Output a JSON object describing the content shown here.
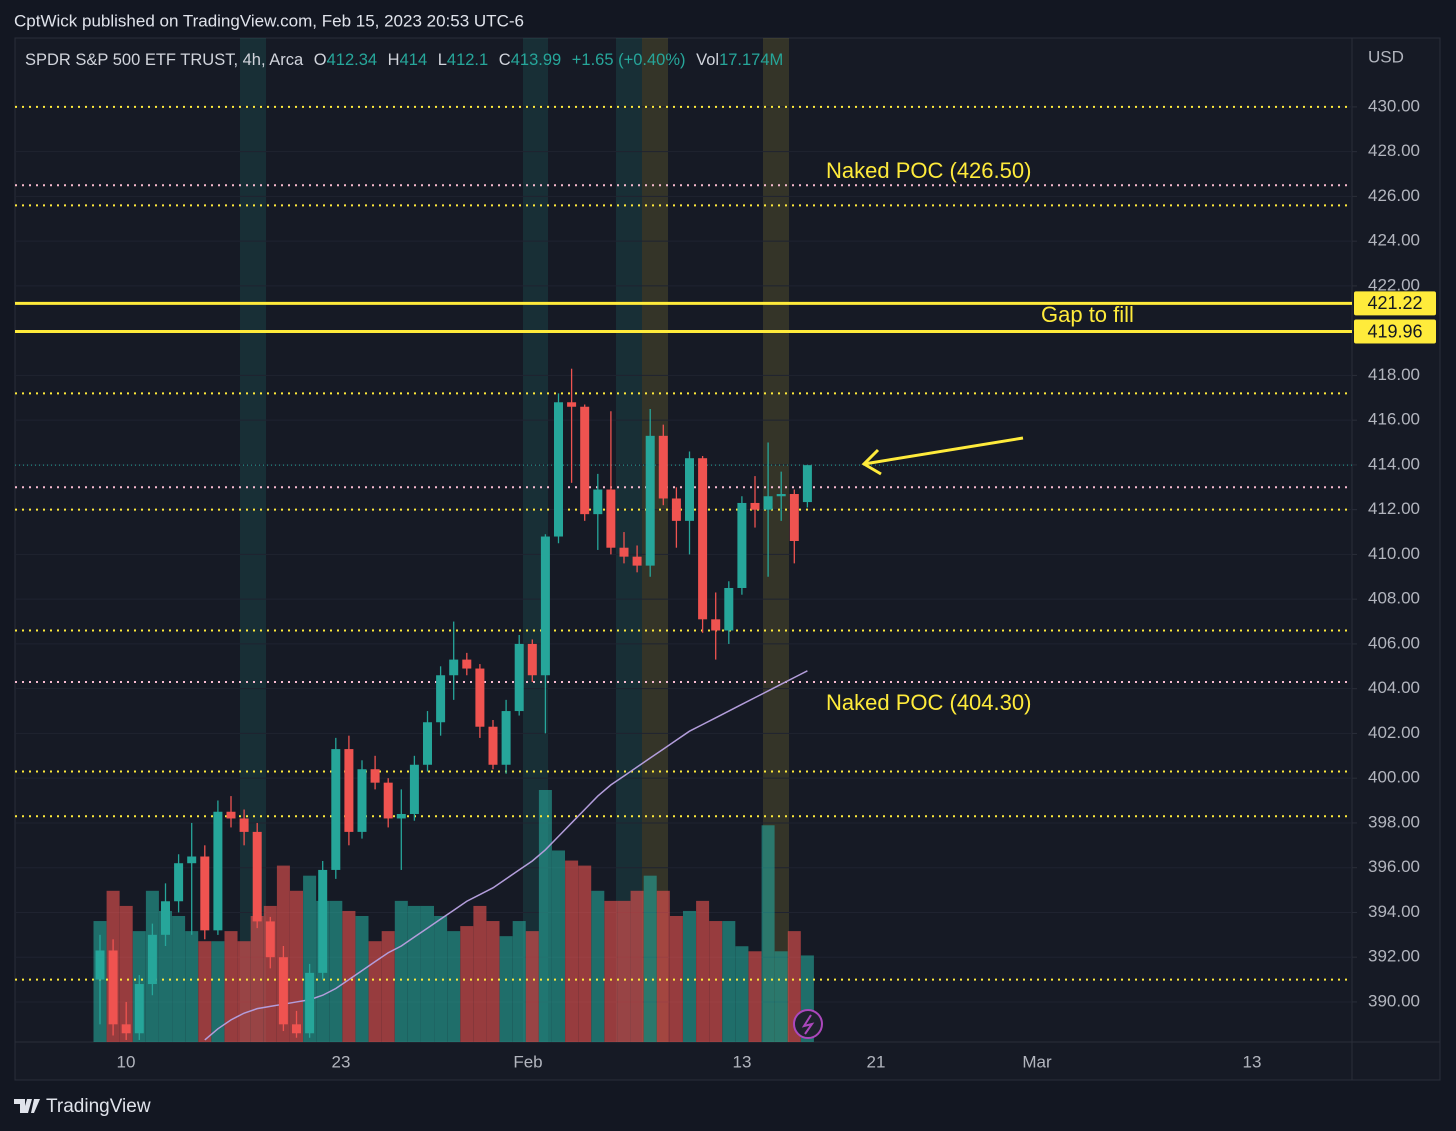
{
  "header": {
    "published": "CptWick published on TradingView.com, Feb 15, 2023 20:53 UTC-6"
  },
  "footer": {
    "brand": "TradingView"
  },
  "chart_data": {
    "type": "candlestick",
    "legend": {
      "symbol": "SPDR S&P 500 ETF TRUST, 4h, Arca",
      "open_label": "O",
      "open": 412.34,
      "high_label": "H",
      "high": 414.0,
      "low_label": "L",
      "low": 412.1,
      "close_label": "C",
      "close": 413.99,
      "change": "+1.65 (+0.40%)",
      "vol_label": "Vol",
      "vol": "17.174M"
    },
    "currency": "USD",
    "up_color": "#26a69a",
    "down_color": "#ef5350",
    "ylim": [
      388.21,
      432.99
    ],
    "yticks": [
      {
        "value": 390,
        "label": "390.00"
      },
      {
        "value": 392,
        "label": "392.00"
      },
      {
        "value": 394,
        "label": "394.00"
      },
      {
        "value": 396,
        "label": "396.00"
      },
      {
        "value": 398,
        "label": "398.00"
      },
      {
        "value": 400,
        "label": "400.00"
      },
      {
        "value": 402,
        "label": "402.00"
      },
      {
        "value": 404,
        "label": "404.00"
      },
      {
        "value": 406,
        "label": "406.00"
      },
      {
        "value": 408,
        "label": "408.00"
      },
      {
        "value": 410,
        "label": "410.00"
      },
      {
        "value": 412,
        "label": "412.00"
      },
      {
        "value": 414,
        "label": "414.00"
      },
      {
        "value": 416,
        "label": "416.00"
      },
      {
        "value": 418,
        "label": "418.00"
      },
      {
        "value": 420,
        "label": "420.00"
      },
      {
        "value": 422,
        "label": "422.00"
      },
      {
        "value": 424,
        "label": "424.00"
      },
      {
        "value": 426,
        "label": "426.00"
      },
      {
        "value": 428,
        "label": "428.00"
      },
      {
        "value": 430,
        "label": "430.00"
      }
    ],
    "xtick_labels": [
      "10",
      "23",
      "Feb",
      "13",
      "21",
      "Mar",
      "13"
    ],
    "grid": true,
    "open": [
      391,
      392.3,
      389,
      388.6,
      390.8,
      393,
      394.5,
      396.2,
      396.5,
      393.2,
      398.5,
      398.2,
      397.6,
      393.6,
      392,
      389,
      388.6,
      391.3,
      395.9,
      401.3,
      397.6,
      400.4,
      399.8,
      398.2,
      398.4,
      400.6,
      402.5,
      404.6,
      405.3,
      404.9,
      402.3,
      400.6,
      403,
      406,
      404.6,
      410.8,
      416.8,
      416.6,
      411.8,
      412.9,
      410.3,
      409.9,
      409.5,
      415.3,
      412.5,
      411.5,
      414.3,
      407.1,
      406.6,
      408.5,
      412.3,
      412,
      412.6,
      412.7,
      412.34
    ],
    "high": [
      393,
      392.8,
      390,
      391.2,
      393.5,
      395.3,
      396.6,
      398,
      397,
      399,
      399.2,
      398.6,
      398,
      393.8,
      392.5,
      389.6,
      391.7,
      396.3,
      401.8,
      401.9,
      400.8,
      401,
      400,
      399.5,
      401,
      403,
      405,
      407,
      405.6,
      405.1,
      402.6,
      403.5,
      406.4,
      406.2,
      410.9,
      417.2,
      418.3,
      416.7,
      413.6,
      416.4,
      411,
      410.4,
      416.5,
      415.8,
      413,
      414.6,
      414.4,
      408.3,
      408.8,
      412.6,
      413.5,
      415,
      413.7,
      412.9,
      414.0
    ],
    "low": [
      389,
      388.5,
      388.3,
      388.3,
      390.3,
      392.5,
      394,
      393,
      392.8,
      393,
      397.8,
      397,
      393.3,
      391.5,
      388.7,
      388.4,
      388.4,
      391,
      395.5,
      397,
      397.3,
      399.5,
      397.8,
      395.9,
      398.1,
      400.3,
      401.9,
      403.5,
      404.6,
      401.8,
      400.4,
      400.2,
      402.8,
      404.3,
      402,
      410.5,
      413.2,
      411.5,
      410.2,
      410,
      409.6,
      409.2,
      409,
      412.2,
      410.3,
      410,
      406.5,
      405.3,
      406,
      408.2,
      411.2,
      409,
      411.5,
      409.6,
      412.1
    ],
    "close": [
      392.3,
      389,
      388.6,
      390.8,
      393,
      394.5,
      396.2,
      396.5,
      393.2,
      398.5,
      398.2,
      397.6,
      393.6,
      392,
      389,
      388.6,
      391.3,
      395.9,
      401.3,
      397.6,
      400.4,
      399.8,
      398.2,
      398.4,
      400.6,
      402.5,
      404.6,
      405.3,
      404.9,
      402.3,
      400.6,
      403,
      406,
      404.6,
      410.8,
      416.8,
      416.6,
      411.8,
      412.9,
      410.3,
      409.9,
      409.5,
      415.3,
      412.5,
      411.5,
      414.3,
      407.1,
      406.6,
      408.5,
      412.3,
      412,
      412.6,
      412.7,
      410.6,
      413.99
    ],
    "volume": [
      24,
      30,
      27,
      22,
      30,
      26,
      25,
      22,
      20,
      20,
      22,
      20,
      25,
      27,
      35,
      30,
      33,
      28,
      28,
      26,
      25,
      20,
      22,
      28,
      27,
      27,
      25,
      22,
      23,
      27,
      24,
      21,
      24,
      22,
      50,
      38,
      36,
      35,
      30,
      28,
      28,
      30,
      33,
      30,
      25,
      26,
      28,
      24,
      24,
      19,
      18,
      43,
      18,
      22,
      17.174
    ],
    "ma": {
      "color": "#b39ddb",
      "values": [
        null,
        null,
        null,
        null,
        null,
        null,
        null,
        null,
        388.3,
        388.8,
        389.2,
        389.5,
        389.7,
        389.8,
        389.9,
        390.0,
        390.1,
        390.3,
        390.6,
        391.0,
        391.4,
        391.8,
        392.2,
        392.5,
        392.9,
        393.3,
        393.7,
        394.1,
        394.5,
        394.8,
        395.1,
        395.5,
        395.9,
        396.3,
        396.8,
        397.4,
        398.0,
        398.6,
        399.2,
        399.7,
        400.1,
        400.5,
        400.9,
        401.3,
        401.7,
        402.1,
        402.4,
        402.7,
        403.0,
        403.3,
        403.6,
        403.9,
        404.2,
        404.5,
        404.8
      ]
    },
    "levels": [
      {
        "value": 430,
        "color": "#ffeb3b",
        "style": "dotted"
      },
      {
        "value": 425.6,
        "color": "#ffeb3b",
        "style": "dotted"
      },
      {
        "value": 417.2,
        "color": "#ffeb3b",
        "style": "dotted"
      },
      {
        "value": 412,
        "color": "#ffeb3b",
        "style": "dotted"
      },
      {
        "value": 406.6,
        "color": "#ffeb3b",
        "style": "dotted"
      },
      {
        "value": 400.3,
        "color": "#ffeb3b",
        "style": "dotted"
      },
      {
        "value": 398.3,
        "color": "#ffeb3b",
        "style": "dotted"
      },
      {
        "value": 391,
        "color": "#ffeb3b",
        "style": "dotted"
      },
      {
        "value": 426.5,
        "color": "#f8bbd0",
        "style": "dotted"
      },
      {
        "value": 413,
        "color": "#f8bbd0",
        "style": "dotted"
      },
      {
        "value": 404.3,
        "color": "#f8bbd0",
        "style": "dotted"
      },
      {
        "value": 421.22,
        "color": "#ffeb3b",
        "style": "solid",
        "axis_label": true
      },
      {
        "value": 419.96,
        "color": "#ffeb3b",
        "style": "solid",
        "axis_label": true
      }
    ],
    "annotations": [
      "Naked POC (426.50)",
      "Gap to fill",
      "Naked POC (404.30)"
    ]
  }
}
